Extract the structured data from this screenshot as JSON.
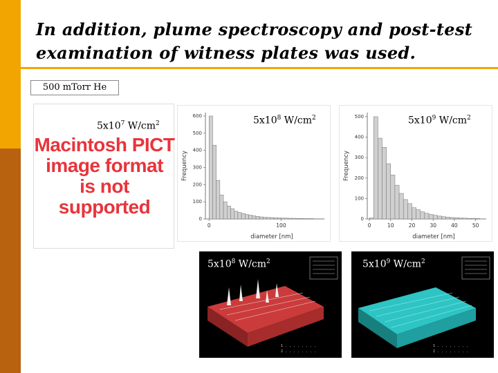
{
  "slide": {
    "title": "In addition, plume spectroscopy and post-test examination of witness plates was used.",
    "pressure_label": "500 mTorr He",
    "colors": {
      "sidebar": "#b8610f",
      "accent": "#f2a500",
      "pict_text": "#e8343b"
    }
  },
  "pict_placeholder": {
    "fluence": {
      "base": "5x10",
      "exp": "7",
      "unit": " W/cm",
      "unit_exp": "2"
    },
    "message_lines": [
      "Macintosh PICT",
      "image format",
      "is not supported"
    ]
  },
  "afm_images": [
    {
      "fluence": {
        "base": "5x10",
        "exp": "8",
        "unit": " W/cm",
        "unit_exp": "2"
      },
      "surface_color": "#cc3b3b"
    },
    {
      "fluence": {
        "base": "5x10",
        "exp": "9",
        "unit": " W/cm",
        "unit_exp": "2"
      },
      "surface_color": "#2ec4c4"
    }
  ],
  "chart_data": [
    {
      "type": "bar",
      "title": "5x10^8 W/cm^2",
      "fluence": {
        "base": "5x10",
        "exp": "8",
        "unit": " W/cm",
        "unit_exp": "2"
      },
      "xlabel": "diameter [nm]",
      "ylabel": "Frequency",
      "xlim": [
        -5,
        160
      ],
      "ylim": [
        0,
        620
      ],
      "xticks": [
        0,
        100
      ],
      "yticks": [
        0,
        100,
        200,
        300,
        400,
        500,
        600
      ],
      "bin_width": 5,
      "bin_starts": [
        0,
        5,
        10,
        15,
        20,
        25,
        30,
        35,
        40,
        45,
        50,
        55,
        60,
        65,
        70,
        75,
        80,
        85,
        90,
        95,
        100,
        105,
        110,
        115,
        120,
        125,
        130,
        135,
        140,
        145,
        150,
        155
      ],
      "values": [
        600,
        430,
        225,
        140,
        100,
        75,
        60,
        45,
        38,
        32,
        26,
        22,
        18,
        15,
        12,
        10,
        9,
        8,
        7,
        6,
        5,
        5,
        4,
        4,
        3,
        3,
        2,
        2,
        2,
        1,
        1,
        1
      ]
    },
    {
      "type": "bar",
      "title": "5x10^9 W/cm^2",
      "fluence": {
        "base": "5x10",
        "exp": "9",
        "unit": " W/cm",
        "unit_exp": "2"
      },
      "xlabel": "diameter [nm]",
      "ylabel": "Frequency",
      "xlim": [
        -1,
        55
      ],
      "ylim": [
        0,
        520
      ],
      "xticks": [
        0,
        10,
        20,
        30,
        40,
        50
      ],
      "yticks": [
        0,
        100,
        200,
        300,
        400,
        500
      ],
      "bin_width": 2,
      "bin_starts": [
        0,
        2,
        4,
        6,
        8,
        10,
        12,
        14,
        16,
        18,
        20,
        22,
        24,
        26,
        28,
        30,
        32,
        34,
        36,
        38,
        40,
        42,
        44,
        46,
        48,
        50
      ],
      "values": [
        5,
        500,
        395,
        350,
        270,
        215,
        165,
        125,
        95,
        75,
        55,
        45,
        35,
        28,
        22,
        18,
        14,
        11,
        9,
        7,
        6,
        5,
        4,
        3,
        3,
        2
      ]
    }
  ]
}
